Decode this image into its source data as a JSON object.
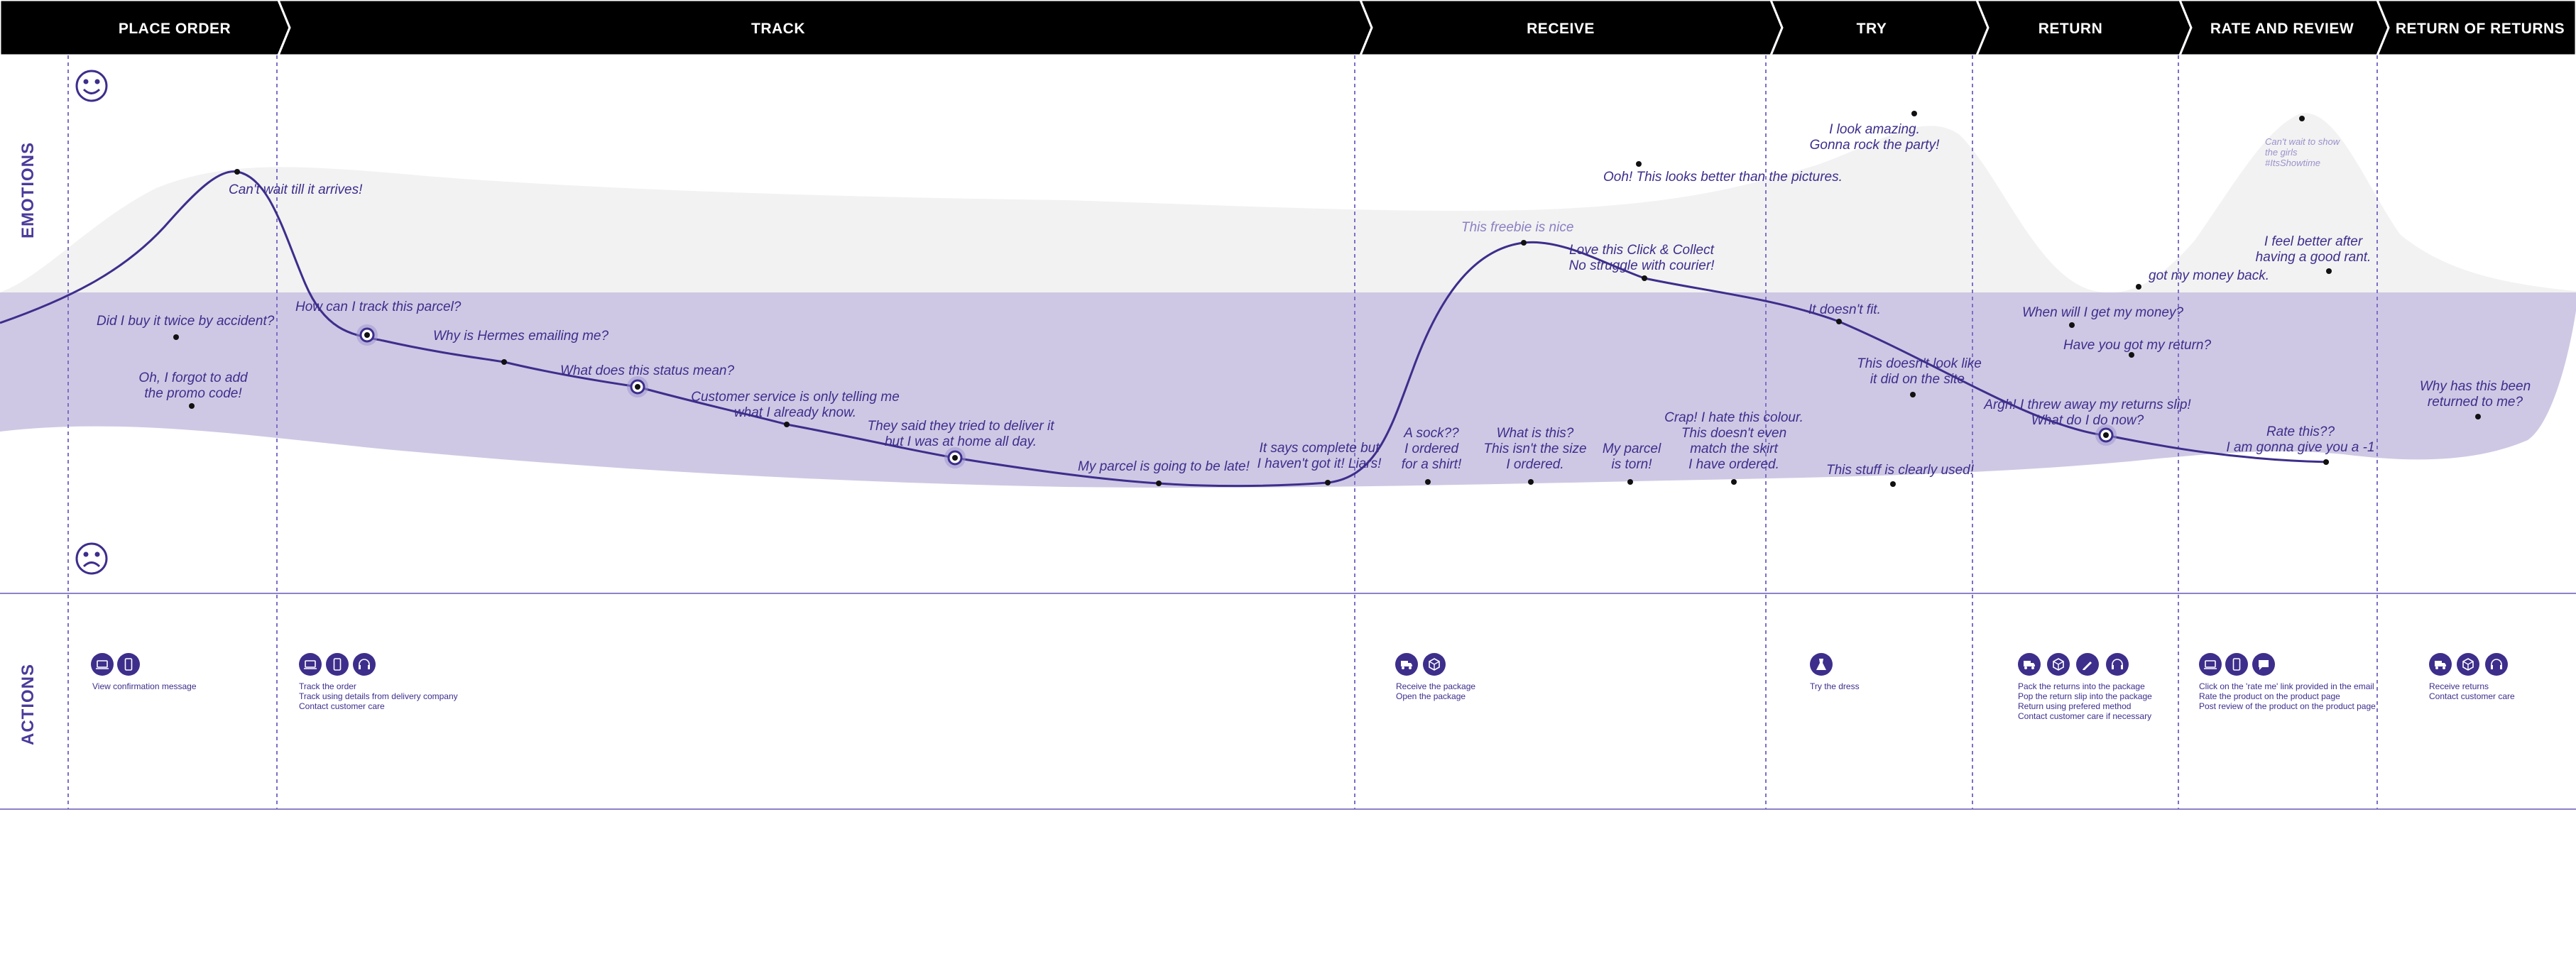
{
  "phases": [
    {
      "label": "PLACE ORDER"
    },
    {
      "label": "TRACK"
    },
    {
      "label": "RECEIVE"
    },
    {
      "label": "TRY"
    },
    {
      "label": "RETURN"
    },
    {
      "label": "RATE AND REVIEW"
    },
    {
      "label": "RETURN OF RETURNS"
    }
  ],
  "rows": {
    "emotions": "EMOTIONS",
    "actions": "ACTIONS"
  },
  "icons": {
    "happy": "smiley-face-icon",
    "sad": "sad-face-icon"
  },
  "colors": {
    "header_bg": "#000000",
    "accent": "#3d2e8c",
    "negative_band": "#cfc8e4",
    "positive_band": "#f2f2f2",
    "divider": "#7d70c6"
  },
  "emotion_notes": [
    {
      "lines": [
        "Can't wait till it arrives!"
      ]
    },
    {
      "lines": [
        "Did I buy it twice by accident?"
      ]
    },
    {
      "lines": [
        "Oh, I forgot to add",
        "the promo code!"
      ]
    },
    {
      "lines": [
        "How can I track this parcel?"
      ]
    },
    {
      "lines": [
        "Why is Hermes emailing me?"
      ]
    },
    {
      "lines": [
        "What does this status mean?"
      ]
    },
    {
      "lines": [
        "Customer service is only telling me",
        "what I already know."
      ]
    },
    {
      "lines": [
        "They said they tried to deliver it",
        "but I was at home all day."
      ]
    },
    {
      "lines": [
        "My parcel is going to be late!"
      ]
    },
    {
      "lines": [
        "It says complete but",
        "I haven't got it! Liars!"
      ]
    },
    {
      "lines": [
        "This freebie is nice"
      ]
    },
    {
      "lines": [
        "Love this Click & Collect",
        "No struggle with courier!"
      ]
    },
    {
      "lines": [
        "Ooh! This looks better than the pictures."
      ]
    },
    {
      "lines": [
        "A sock??",
        "I ordered",
        "for a shirt!"
      ]
    },
    {
      "lines": [
        "What is this?",
        "This isn't the size",
        "I ordered."
      ]
    },
    {
      "lines": [
        "My parcel",
        "is torn!"
      ]
    },
    {
      "lines": [
        "Crap! I hate this colour.",
        "This doesn't even",
        "match the skirt",
        "I have ordered."
      ]
    },
    {
      "lines": [
        "I look amazing.",
        "Gonna rock the party!"
      ]
    },
    {
      "lines": [
        "It doesn't fit."
      ]
    },
    {
      "lines": [
        "This doesn't look like",
        "it did on the site."
      ]
    },
    {
      "lines": [
        "This stuff is clearly used!"
      ]
    },
    {
      "lines": [
        "When will I get my money?"
      ]
    },
    {
      "lines": [
        "Have you got my return?"
      ]
    },
    {
      "lines": [
        "Argh! I threw away my returns slip!",
        "What do I do now?"
      ]
    },
    {
      "lines": [
        "got my money back."
      ]
    },
    {
      "lines": [
        "Can't wait to show",
        "the girls",
        "#ItsShowtime"
      ]
    },
    {
      "lines": [
        "I feel better after",
        "having a good rant."
      ]
    },
    {
      "lines": [
        "Rate this??",
        "I am gonna give you a -1"
      ]
    },
    {
      "lines": [
        "Why has this been",
        "returned to me?"
      ]
    }
  ],
  "actions": [
    {
      "icons": [
        "laptop-icon",
        "phone-icon"
      ],
      "lines": [
        "View confirmation message"
      ]
    },
    {
      "icons": [
        "laptop-icon",
        "phone-icon",
        "headset-icon"
      ],
      "lines": [
        "Track the order",
        "Track using details from delivery company",
        "Contact customer care"
      ]
    },
    {
      "icons": [
        "truck-icon",
        "package-icon"
      ],
      "lines": [
        "Receive the package",
        "Open the package"
      ]
    },
    {
      "icons": [
        "dress-icon"
      ],
      "lines": [
        "Try the dress"
      ]
    },
    {
      "icons": [
        "truck-icon",
        "package-icon",
        "pen-icon",
        "headset-icon"
      ],
      "lines": [
        "Pack the returns into the package",
        "Pop the return slip into the package",
        "Return using prefered method",
        "Contact customer care if necessary"
      ]
    },
    {
      "icons": [
        "laptop-icon",
        "phone-icon",
        "chat-icon"
      ],
      "lines": [
        "Click on the 'rate me' link provided in the email",
        "Rate the product on the product page",
        "Post review of the product on the product page"
      ]
    },
    {
      "icons": [
        "truck-icon",
        "package-icon",
        "headset-icon"
      ],
      "lines": [
        "Receive returns",
        "Contact customer care"
      ]
    }
  ]
}
